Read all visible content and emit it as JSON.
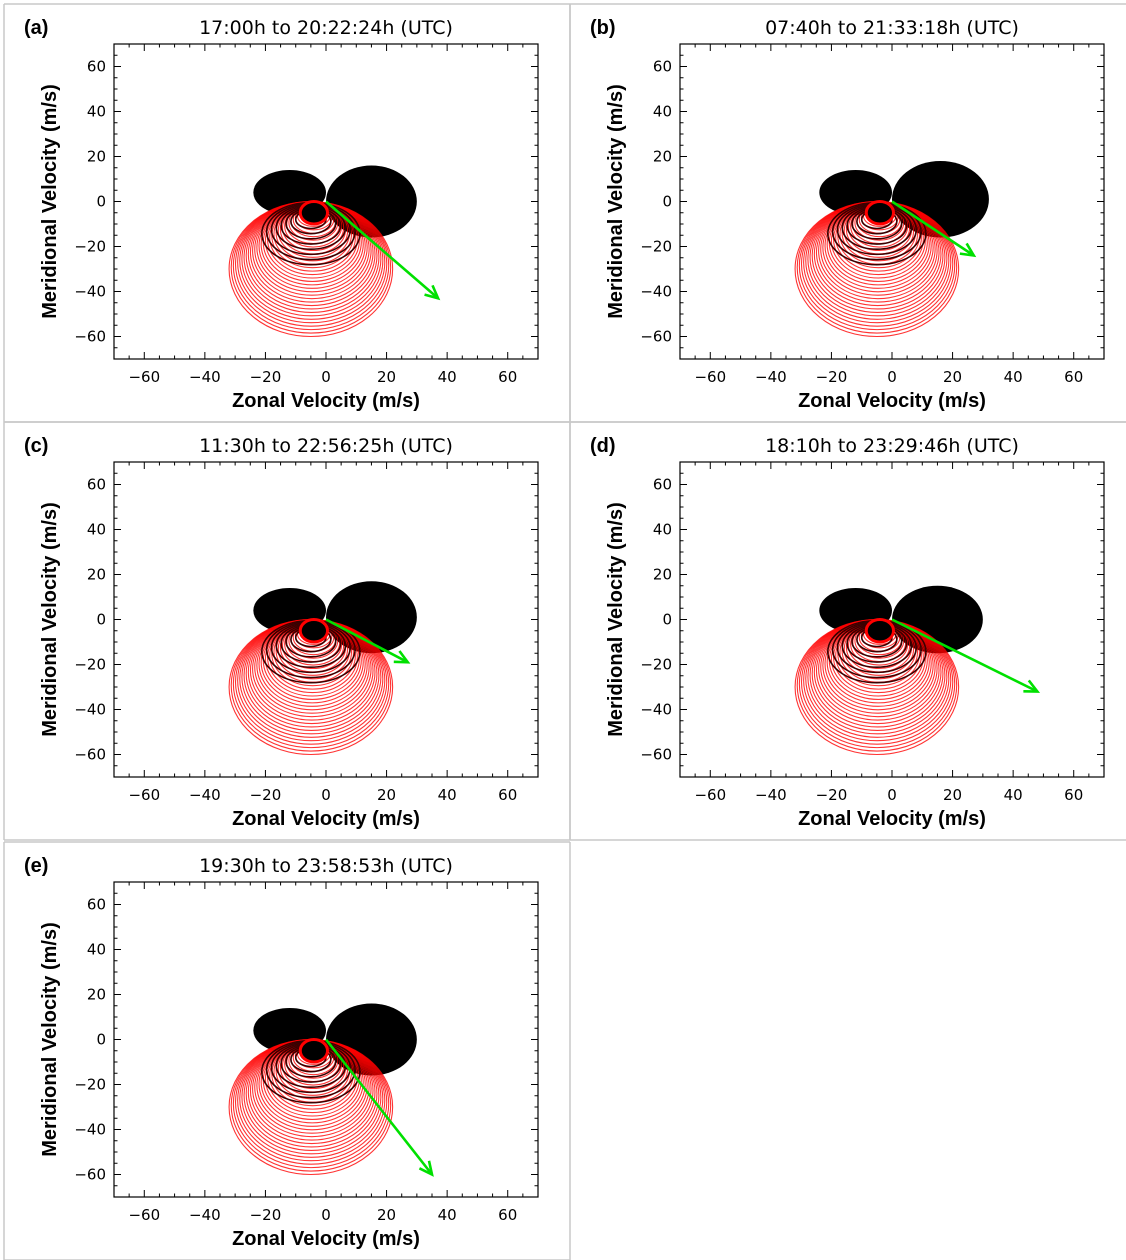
{
  "chart_data": [
    {
      "type": "scatter",
      "panel": "(a)",
      "title": "17:00h to 20:22:24h (UTC)",
      "xlabel": "Zonal Velocity (m/s)",
      "ylabel": "Meridional Velocity (m/s)",
      "xlim": [
        -70,
        70
      ],
      "ylim": [
        -70,
        70
      ],
      "xticks": [
        -60,
        -40,
        -20,
        0,
        20,
        40,
        60
      ],
      "yticks": [
        -60,
        -40,
        -20,
        0,
        20,
        40,
        60
      ],
      "series": [
        {
          "role": "red-ellipses",
          "color": "#ff0000",
          "center": [
            -5,
            -30
          ],
          "rx": 27,
          "ry": 30
        },
        {
          "role": "black-lobes",
          "color": "#000000",
          "left_lobe": {
            "center": [
              -12,
              4
            ],
            "rx": 12,
            "ry": 10
          },
          "right_lobe": {
            "center": [
              15,
              0
            ],
            "rx": 15,
            "ry": 16
          }
        },
        {
          "role": "mean-vector",
          "color": "#00e000",
          "start": [
            0,
            0
          ],
          "end": [
            37,
            -43
          ]
        }
      ]
    },
    {
      "type": "scatter",
      "panel": "(b)",
      "title": "07:40h to 21:33:18h (UTC)",
      "xlabel": "Zonal Velocity (m/s)",
      "ylabel": "Meridional Velocity (m/s)",
      "xlim": [
        -70,
        70
      ],
      "ylim": [
        -70,
        70
      ],
      "xticks": [
        -60,
        -40,
        -20,
        0,
        20,
        40,
        60
      ],
      "yticks": [
        -60,
        -40,
        -20,
        0,
        20,
        40,
        60
      ],
      "series": [
        {
          "role": "red-ellipses",
          "color": "#ff0000",
          "center": [
            -5,
            -30
          ],
          "rx": 27,
          "ry": 30
        },
        {
          "role": "black-lobes",
          "color": "#000000",
          "left_lobe": {
            "center": [
              -12,
              4
            ],
            "rx": 12,
            "ry": 10
          },
          "right_lobe": {
            "center": [
              16,
              1
            ],
            "rx": 16,
            "ry": 17
          }
        },
        {
          "role": "mean-vector",
          "color": "#00e000",
          "start": [
            0,
            0
          ],
          "end": [
            27,
            -24
          ]
        }
      ]
    },
    {
      "type": "scatter",
      "panel": "(c)",
      "title": "11:30h to 22:56:25h (UTC)",
      "xlabel": "Zonal Velocity (m/s)",
      "ylabel": "Meridional Velocity (m/s)",
      "xlim": [
        -70,
        70
      ],
      "ylim": [
        -70,
        70
      ],
      "xticks": [
        -60,
        -40,
        -20,
        0,
        20,
        40,
        60
      ],
      "yticks": [
        -60,
        -40,
        -20,
        0,
        20,
        40,
        60
      ],
      "series": [
        {
          "role": "red-ellipses",
          "color": "#ff0000",
          "center": [
            -5,
            -30
          ],
          "rx": 27,
          "ry": 30
        },
        {
          "role": "black-lobes",
          "color": "#000000",
          "left_lobe": {
            "center": [
              -12,
              4
            ],
            "rx": 12,
            "ry": 10
          },
          "right_lobe": {
            "center": [
              15,
              1
            ],
            "rx": 15,
            "ry": 16
          }
        },
        {
          "role": "mean-vector",
          "color": "#00e000",
          "start": [
            0,
            0
          ],
          "end": [
            27,
            -19
          ]
        }
      ]
    },
    {
      "type": "scatter",
      "panel": "(d)",
      "title": "18:10h to 23:29:46h (UTC)",
      "xlabel": "Zonal Velocity (m/s)",
      "ylabel": "Meridional Velocity (m/s)",
      "xlim": [
        -70,
        70
      ],
      "ylim": [
        -70,
        70
      ],
      "xticks": [
        -60,
        -40,
        -20,
        0,
        20,
        40,
        60
      ],
      "yticks": [
        -60,
        -40,
        -20,
        0,
        20,
        40,
        60
      ],
      "series": [
        {
          "role": "red-ellipses",
          "color": "#ff0000",
          "center": [
            -5,
            -30
          ],
          "rx": 27,
          "ry": 30
        },
        {
          "role": "black-lobes",
          "color": "#000000",
          "left_lobe": {
            "center": [
              -12,
              4
            ],
            "rx": 12,
            "ry": 10
          },
          "right_lobe": {
            "center": [
              15,
              0
            ],
            "rx": 15,
            "ry": 15
          }
        },
        {
          "role": "mean-vector",
          "color": "#00e000",
          "start": [
            0,
            0
          ],
          "end": [
            48,
            -32
          ]
        }
      ]
    },
    {
      "type": "scatter",
      "panel": "(e)",
      "title": "19:30h to 23:58:53h (UTC)",
      "xlabel": "Zonal Velocity (m/s)",
      "ylabel": "Meridional Velocity (m/s)",
      "xlim": [
        -70,
        70
      ],
      "ylim": [
        -70,
        70
      ],
      "xticks": [
        -60,
        -40,
        -20,
        0,
        20,
        40,
        60
      ],
      "yticks": [
        -60,
        -40,
        -20,
        0,
        20,
        40,
        60
      ],
      "series": [
        {
          "role": "red-ellipses",
          "color": "#ff0000",
          "center": [
            -5,
            -30
          ],
          "rx": 27,
          "ry": 30
        },
        {
          "role": "black-lobes",
          "color": "#000000",
          "left_lobe": {
            "center": [
              -12,
              4
            ],
            "rx": 12,
            "ry": 10
          },
          "right_lobe": {
            "center": [
              15,
              0
            ],
            "rx": 15,
            "ry": 16
          }
        },
        {
          "role": "mean-vector",
          "color": "#00e000",
          "start": [
            0,
            0
          ],
          "end": [
            35,
            -60
          ]
        }
      ]
    }
  ]
}
